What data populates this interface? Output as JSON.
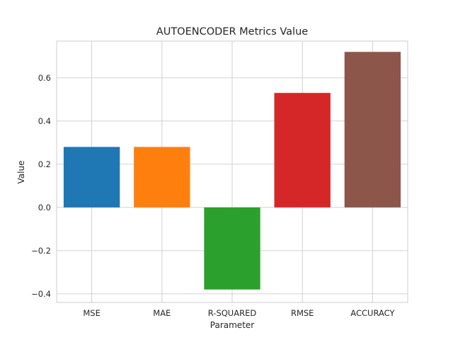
{
  "chart_data": {
    "type": "bar",
    "title": "AUTOENCODER Metrics Value",
    "xlabel": "Parameter",
    "ylabel": "Value",
    "categories": [
      "MSE",
      "MAE",
      "R-SQUARED",
      "RMSE",
      "ACCURACY"
    ],
    "values": [
      0.28,
      0.28,
      -0.38,
      0.53,
      0.72
    ],
    "colors": [
      "#1f77b4",
      "#ff7f0e",
      "#2ca02c",
      "#d62728",
      "#8c564b"
    ],
    "ylim": [
      -0.44,
      0.77
    ],
    "yticks": [
      -0.4,
      -0.2,
      0.0,
      0.2,
      0.4,
      0.6
    ],
    "ytick_labels": [
      "−0.4",
      "−0.2",
      "0.0",
      "0.2",
      "0.4",
      "0.6"
    ],
    "grid": true,
    "legend": "none"
  }
}
